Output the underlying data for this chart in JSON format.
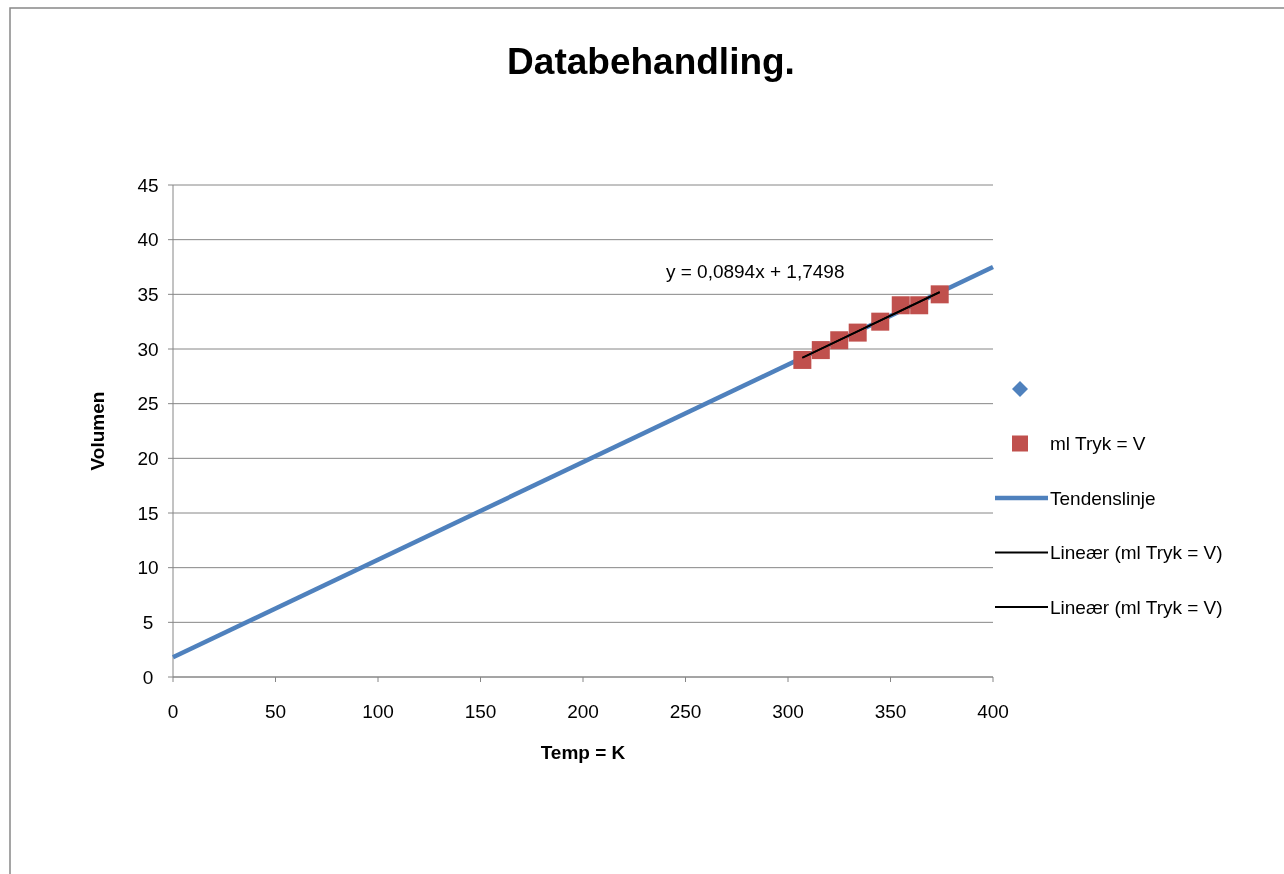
{
  "chart_data": {
    "type": "scatter",
    "title": "Databehandling.",
    "xlabel": "Temp = K",
    "ylabel": "Volumen",
    "xlim": [
      0,
      400
    ],
    "xticks": [
      0,
      50,
      100,
      150,
      200,
      250,
      300,
      350,
      400
    ],
    "ylim": [
      0,
      45
    ],
    "yticks": [
      0,
      5,
      10,
      15,
      20,
      25,
      30,
      35,
      40,
      45
    ],
    "grid": "y",
    "legend": "right",
    "series": [
      {
        "marker": "diamond",
        "color": "#4f81bd"
      },
      {
        "name": "ml Tryk = V",
        "marker": "square",
        "color": "#c0504d",
        "x": [
          307,
          316,
          325,
          334,
          345,
          355,
          364,
          374
        ],
        "values": [
          29.0,
          29.9,
          30.8,
          31.5,
          32.5,
          34.0,
          34.0,
          35.0
        ]
      },
      {
        "name": "Tendenslinje",
        "type": "line",
        "marker": "none",
        "color": "#4f81bd",
        "x": [
          0,
          400
        ],
        "values": [
          1.8,
          37.5
        ]
      },
      {
        "name": "Lineær (ml Tryk = V)",
        "type": "line",
        "marker": "none",
        "color": "#000000",
        "x": [
          307,
          374
        ],
        "values": [
          29.2,
          35.2
        ]
      },
      {
        "name": "Lineær (ml Tryk = V)",
        "type": "line",
        "marker": "none",
        "color": "#000000",
        "x": [
          307,
          374
        ],
        "values": [
          29.2,
          35.2
        ]
      }
    ],
    "annotations": [
      "y = 0,0894x + 1,7498"
    ]
  }
}
